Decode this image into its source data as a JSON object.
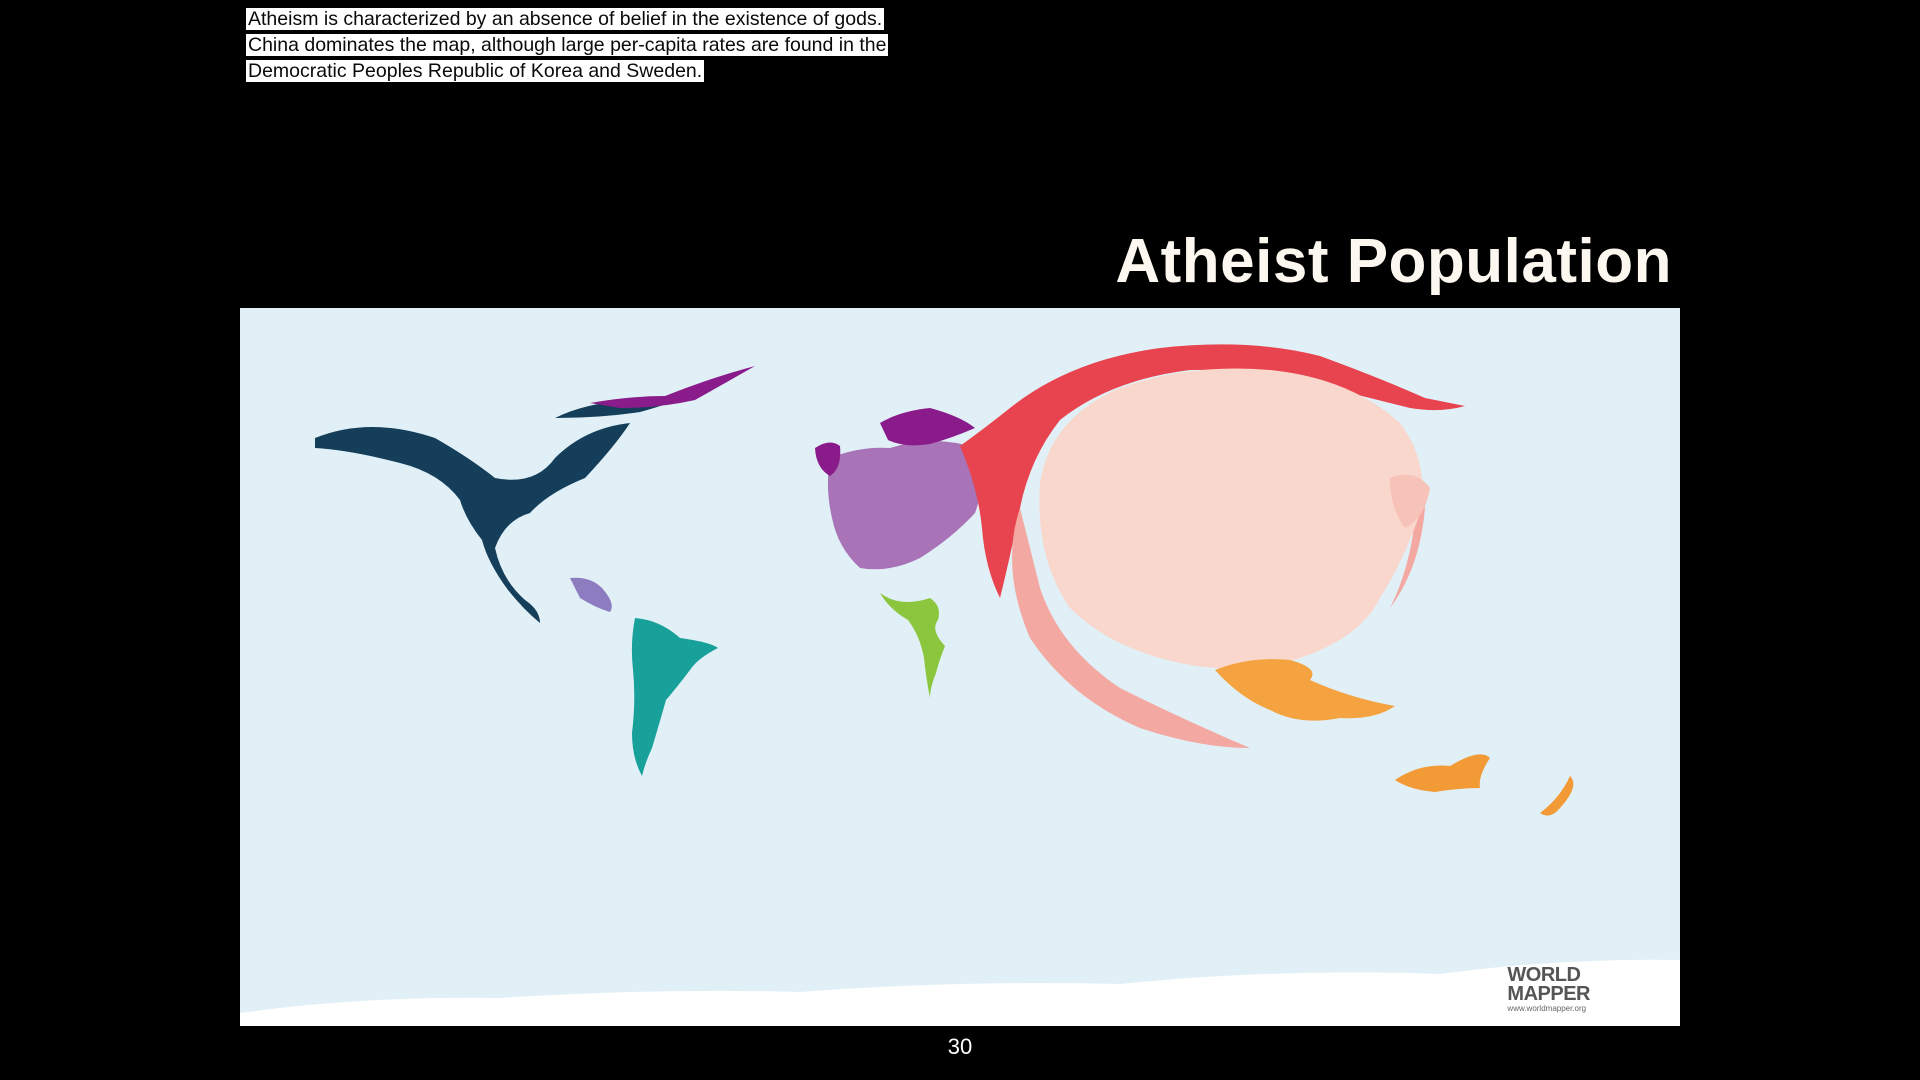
{
  "caption": {
    "lines": [
      "Atheism is characterized by an absence of belief in the existence of gods.",
      "China dominates the map, although large per-capita rates are found in the",
      "Democratic Peoples Republic of Korea and Sweden."
    ]
  },
  "title": "Atheist Population",
  "map": {
    "type": "cartogram",
    "background_color": "#e1f0f6",
    "logo": {
      "line1": "WORLD",
      "line2": "MAPPER",
      "url": "www.worldmapper.org"
    },
    "colors": {
      "north_america": "#143e5a",
      "central_america": "#8e7cc0",
      "south_america": "#17a19a",
      "western_europe": "#a873b7",
      "northern_europe": "#8a1b8a",
      "africa": "#8cc63f",
      "russia": "#e84450",
      "china": "#f9d7cc",
      "southeast_asia": "#f4a340",
      "oceania": "#f29a35",
      "antarctica": "#ffffff"
    }
  },
  "page_number": "30"
}
